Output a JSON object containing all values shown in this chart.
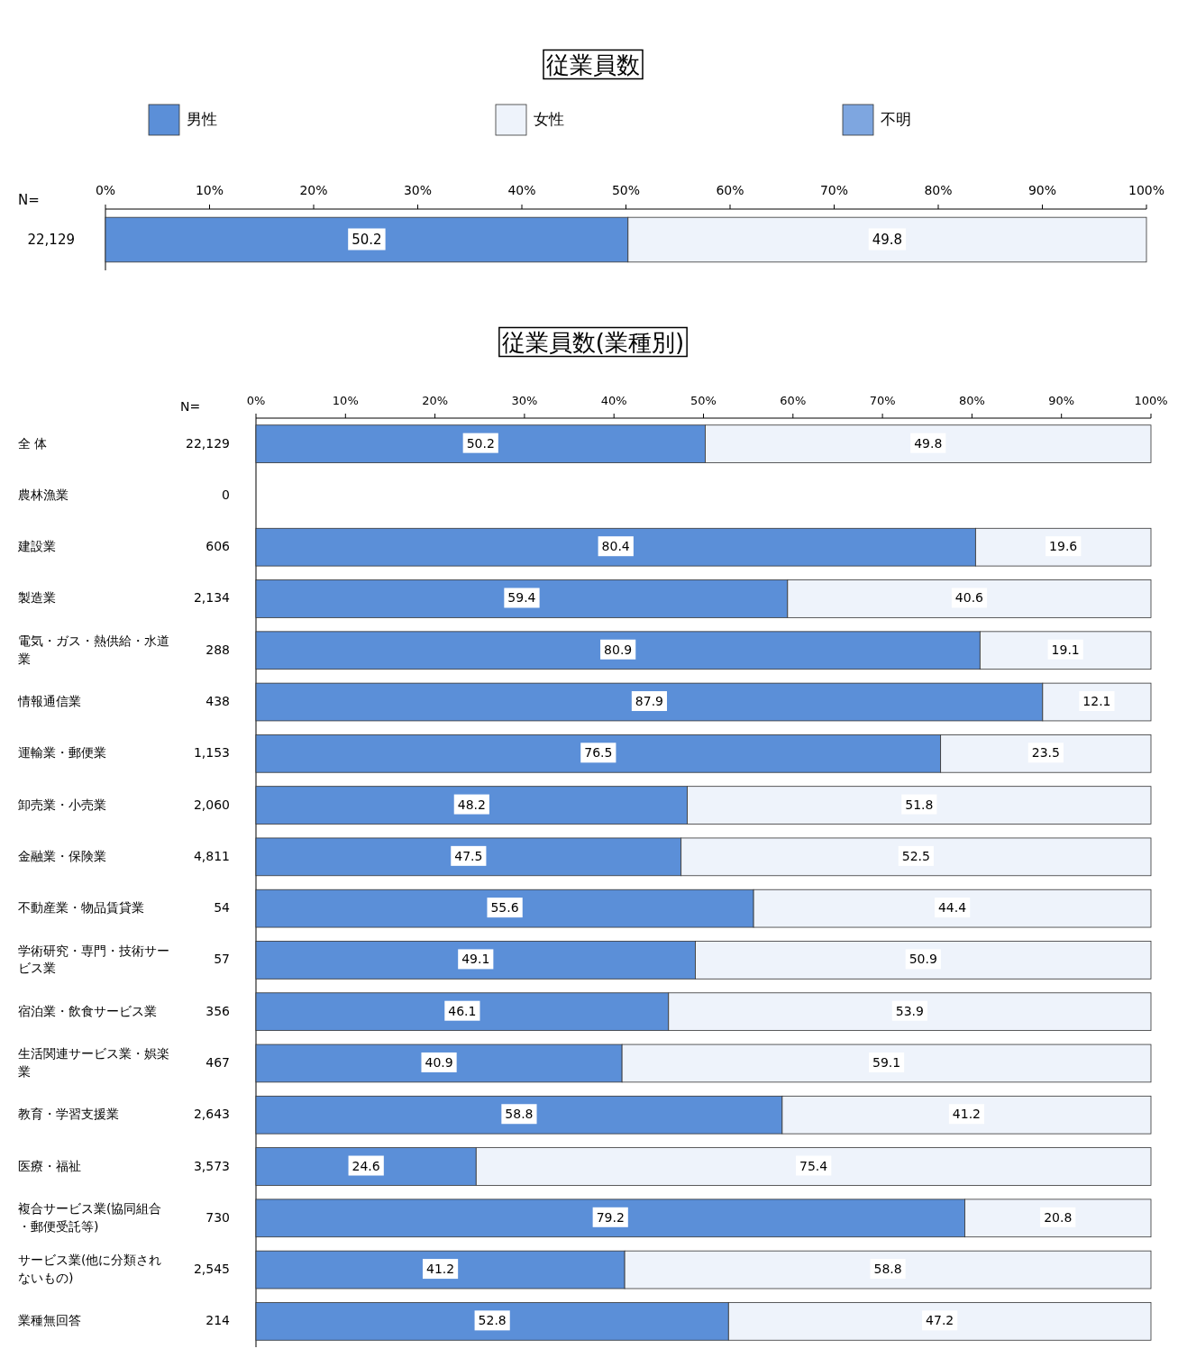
{
  "chart_data": [
    {
      "type": "bar",
      "title": "従業員数",
      "orientation": "horizontal",
      "stacked": true,
      "legend": "top",
      "data_labels": true,
      "categories": [
        null
      ],
      "y2label": "N=",
      "y2_categories": [
        "22,129"
      ],
      "xlim": [
        0,
        100
      ],
      "xticks": [
        {
          "value": 0,
          "label": "0%"
        },
        {
          "value": 10,
          "label": "10%"
        },
        {
          "value": 20,
          "label": "20%"
        },
        {
          "value": 30,
          "label": "30%"
        },
        {
          "value": 40,
          "label": "40%"
        },
        {
          "value": 50,
          "label": "50%"
        },
        {
          "value": 60,
          "label": "60%"
        },
        {
          "value": 70,
          "label": "70%"
        },
        {
          "value": 80,
          "label": "80%"
        },
        {
          "value": 90,
          "label": "90%"
        },
        {
          "value": 100,
          "label": "100%"
        }
      ],
      "series": [
        {
          "name": "男性",
          "color": "#5b8fd8",
          "values": [
            50.2
          ]
        },
        {
          "name": "女性",
          "color": "#eef3fb",
          "values": [
            49.8
          ]
        },
        {
          "name": "不明",
          "color": "#7ea6e0",
          "values": [
            null
          ]
        }
      ]
    },
    {
      "type": "bar",
      "title": "従業員数(業種別)",
      "orientation": "horizontal",
      "stacked": true,
      "data_labels": true,
      "categories": [
        "全 体",
        "農林漁業",
        "建設業",
        "製造業",
        "電気・ガス・熱供給・水道業",
        "情報通信業",
        "運輸業・郵便業",
        "卸売業・小売業",
        "金融業・保険業",
        "不動産業・物品賃貸業",
        "学術研究・専門・技術サービス業",
        "宿泊業・飲食サービス業",
        "生活関連サービス業・娯楽業",
        "教育・学習支援業",
        "医療・福祉",
        "複合サービス業(協同組合・郵便受託等)",
        "サービス業(他に分類されないもの)",
        "業種無回答"
      ],
      "y2label": "N=",
      "y2_categories": [
        "22,129",
        "0",
        "606",
        "2,134",
        "288",
        "438",
        "1,153",
        "2,060",
        "4,811",
        "54",
        "57",
        "356",
        "467",
        "2,643",
        "3,573",
        "730",
        "2,545",
        "214"
      ],
      "xlim": [
        0,
        100
      ],
      "xticks": [
        {
          "value": 0,
          "label": "0%"
        },
        {
          "value": 10,
          "label": "10%"
        },
        {
          "value": 20,
          "label": "20%"
        },
        {
          "value": 30,
          "label": "30%"
        },
        {
          "value": 40,
          "label": "40%"
        },
        {
          "value": 50,
          "label": "50%"
        },
        {
          "value": 60,
          "label": "60%"
        },
        {
          "value": 70,
          "label": "70%"
        },
        {
          "value": 80,
          "label": "80%"
        },
        {
          "value": 90,
          "label": "90%"
        },
        {
          "value": 100,
          "label": "100%"
        }
      ],
      "series": [
        {
          "color": "#5b8fd8",
          "values": [
            50.2,
            null,
            80.4,
            59.4,
            80.9,
            87.9,
            76.5,
            48.2,
            47.5,
            55.6,
            49.1,
            46.1,
            40.9,
            58.8,
            24.6,
            79.2,
            41.2,
            52.8
          ]
        },
        {
          "color": "#eef3fb",
          "values": [
            49.8,
            null,
            19.6,
            40.6,
            19.1,
            12.1,
            23.5,
            51.8,
            52.5,
            44.4,
            50.9,
            53.9,
            59.1,
            41.2,
            75.4,
            20.8,
            58.8,
            47.2
          ]
        }
      ]
    }
  ]
}
